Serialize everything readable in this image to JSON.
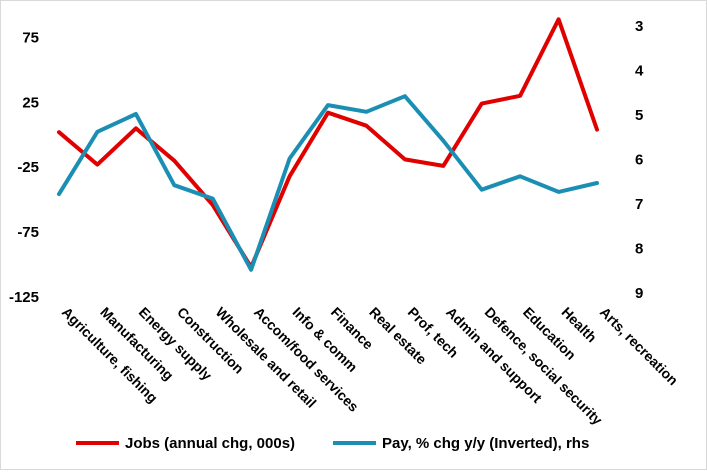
{
  "chart_data": {
    "type": "line",
    "categories": [
      "Agriculture, fishing",
      "Manufacturing",
      "Energy supply",
      "Construction",
      "Wholesale and retail",
      "Accom/food services",
      "Info & comm",
      "Finance",
      "Real estate",
      "Prof, tech",
      "Admin and support",
      "Defence, social security",
      "Education",
      "Health",
      "Arts,  recreation"
    ],
    "series": [
      {
        "name": "Jobs (annual chg, 000s)",
        "axis": "left",
        "color": "#e00000",
        "values": [
          2,
          -23,
          5,
          -20,
          -54,
          -102,
          -32,
          17,
          7,
          -19,
          -24,
          24,
          30,
          89,
          4
        ]
      },
      {
        "name": "Pay, % chg y/y (Inverted), rhs",
        "axis": "right",
        "color": "#1b8fb3",
        "values": [
          6.8,
          5.4,
          5.0,
          6.6,
          6.9,
          8.5,
          6.0,
          4.8,
          4.95,
          4.6,
          5.6,
          6.7,
          6.4,
          6.75,
          6.55
        ]
      }
    ],
    "y_left": {
      "ylim": [
        -125,
        100
      ],
      "ticks": [
        75,
        25,
        -25,
        -75,
        -125
      ]
    },
    "y_right": {
      "ylim": [
        3,
        9
      ],
      "inverted": true,
      "ticks": [
        3,
        4,
        5,
        6,
        7,
        8,
        9
      ]
    },
    "grid": false,
    "legend": "bottom"
  }
}
